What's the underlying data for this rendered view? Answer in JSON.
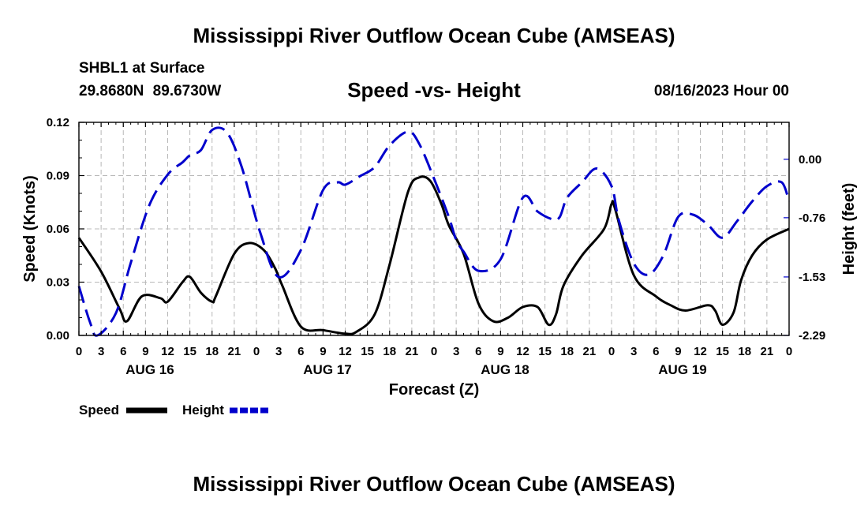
{
  "title": "Mississippi River Outflow Ocean Cube (AMSEAS)",
  "station": "SHBL1 at Surface",
  "location": "29.8680N  89.6730W",
  "subtitle": "Speed -vs- Height",
  "datetime": "08/16/2023 Hour 00",
  "footer_title": "Mississippi River Outflow Ocean Cube (AMSEAS)",
  "chart_data": {
    "type": "line",
    "xlabel": "Forecast (Z)",
    "ylabel_left": "Speed (Knots)",
    "ylabel_right": "Height (feet)",
    "x_range_hours": [
      0,
      96
    ],
    "x_tick_step_hours": 3,
    "x_tick_labels": [
      "0",
      "3",
      "6",
      "9",
      "12",
      "15",
      "18",
      "21",
      "0",
      "3",
      "6",
      "9",
      "12",
      "15",
      "18",
      "21",
      "0",
      "3",
      "6",
      "9",
      "12",
      "15",
      "18",
      "21",
      "0",
      "3",
      "6",
      "9",
      "12",
      "15",
      "18",
      "21",
      "0"
    ],
    "date_labels": [
      {
        "label": "AUG 16",
        "hour": 9.6
      },
      {
        "label": "AUG 17",
        "hour": 33.6
      },
      {
        "label": "AUG 18",
        "hour": 57.6
      },
      {
        "label": "AUG 19",
        "hour": 81.6
      }
    ],
    "ylim_left": [
      0,
      0.12
    ],
    "y_ticks_left": [
      "0.00",
      "0.03",
      "0.06",
      "0.09",
      "0.12"
    ],
    "y_tick_values_left": [
      0,
      0.03,
      0.06,
      0.09,
      0.12
    ],
    "ylim_right": [
      -2.29,
      0.48
    ],
    "y_ticks_right": [
      "0.00",
      "-0.76",
      "-1.53",
      "-2.29"
    ],
    "y_tick_values_right": [
      0.0,
      -0.76,
      -1.53,
      -2.29
    ],
    "grid": true,
    "legend_position": "bottom-left",
    "series": [
      {
        "name": "Speed",
        "color": "#000000",
        "dash": "solid",
        "axis": "left",
        "x": [
          0,
          3,
          5.5,
          6.5,
          8.5,
          11,
          12,
          14,
          15,
          16.5,
          18,
          18.5,
          21,
          23,
          25,
          26.5,
          27.5,
          30,
          33,
          36,
          37.5,
          40,
          42,
          44.5,
          46,
          47.5,
          49,
          50,
          52,
          54,
          56,
          58,
          60,
          62,
          63.5,
          64.5,
          65.5,
          68,
          71,
          72,
          72.5,
          75,
          78,
          80,
          82,
          85,
          86,
          87,
          88.5,
          89.5,
          91,
          93,
          96
        ],
        "y": [
          0.055,
          0.036,
          0.015,
          0.008,
          0.022,
          0.021,
          0.019,
          0.03,
          0.033,
          0.024,
          0.019,
          0.022,
          0.046,
          0.052,
          0.048,
          0.038,
          0.028,
          0.005,
          0.003,
          0.001,
          0.002,
          0.012,
          0.04,
          0.081,
          0.089,
          0.087,
          0.074,
          0.062,
          0.046,
          0.018,
          0.008,
          0.01,
          0.016,
          0.016,
          0.006,
          0.012,
          0.028,
          0.045,
          0.06,
          0.074,
          0.071,
          0.034,
          0.022,
          0.017,
          0.014,
          0.017,
          0.014,
          0.006,
          0.013,
          0.031,
          0.045,
          0.054,
          0.06
        ]
      },
      {
        "name": "Height",
        "color": "#0000cc",
        "dash": "dashed",
        "axis": "right",
        "x": [
          0,
          1.5,
          2.5,
          5,
          7,
          9.5,
          12,
          14,
          15,
          16.5,
          18,
          20,
          22,
          24.5,
          27,
          30,
          33,
          35,
          36,
          38,
          40,
          42,
          44.5,
          46,
          48,
          50,
          51,
          52,
          54,
          57,
          60,
          62,
          64,
          65,
          66,
          68,
          70,
          72,
          73,
          75,
          77,
          79,
          81,
          83,
          85,
          87,
          89,
          91,
          93,
          95,
          96
        ],
        "y": [
          -1.65,
          -2.12,
          -2.29,
          -2.0,
          -1.35,
          -0.6,
          -0.2,
          -0.04,
          0.05,
          0.12,
          0.38,
          0.35,
          -0.1,
          -0.95,
          -1.53,
          -1.18,
          -0.4,
          -0.3,
          -0.33,
          -0.22,
          -0.1,
          0.18,
          0.36,
          0.2,
          -0.25,
          -0.75,
          -1.05,
          -1.2,
          -1.45,
          -1.3,
          -0.5,
          -0.68,
          -0.78,
          -0.75,
          -0.5,
          -0.3,
          -0.12,
          -0.35,
          -0.8,
          -1.35,
          -1.5,
          -1.25,
          -0.75,
          -0.72,
          -0.85,
          -1.02,
          -0.8,
          -0.55,
          -0.35,
          -0.3,
          -0.55
        ]
      }
    ]
  }
}
